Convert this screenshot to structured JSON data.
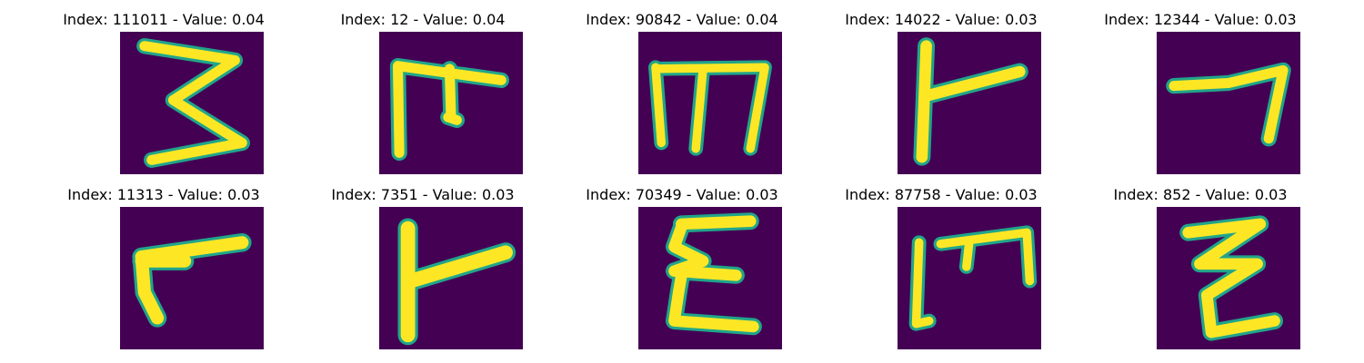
{
  "colors": {
    "background": "#440154",
    "stroke_edge": "#21a58a",
    "stroke_mid": "#5ec962",
    "stroke_core": "#fde725"
  },
  "panels": [
    {
      "title": "Index: 111011 - Value: 0.04",
      "glyph": "handwritten-3-icon"
    },
    {
      "title": "Index: 12 - Value: 0.04",
      "glyph": "handwritten-m-icon"
    },
    {
      "title": "Index: 90842 - Value: 0.04",
      "glyph": "handwritten-m-icon"
    },
    {
      "title": "Index: 14022 - Value: 0.03",
      "glyph": "handwritten-r-icon"
    },
    {
      "title": "Index: 12344 - Value: 0.03",
      "glyph": "handwritten-7-icon"
    },
    {
      "title": "Index: 11313 - Value: 0.03",
      "glyph": "handwritten-r-icon"
    },
    {
      "title": "Index: 7351 - Value: 0.03",
      "glyph": "handwritten-r-icon"
    },
    {
      "title": "Index: 70349 - Value: 0.03",
      "glyph": "handwritten-e-icon"
    },
    {
      "title": "Index: 87758 - Value: 0.03",
      "glyph": "handwritten-m-icon"
    },
    {
      "title": "Index: 852 - Value: 0.03",
      "glyph": "handwritten-z-icon"
    }
  ]
}
